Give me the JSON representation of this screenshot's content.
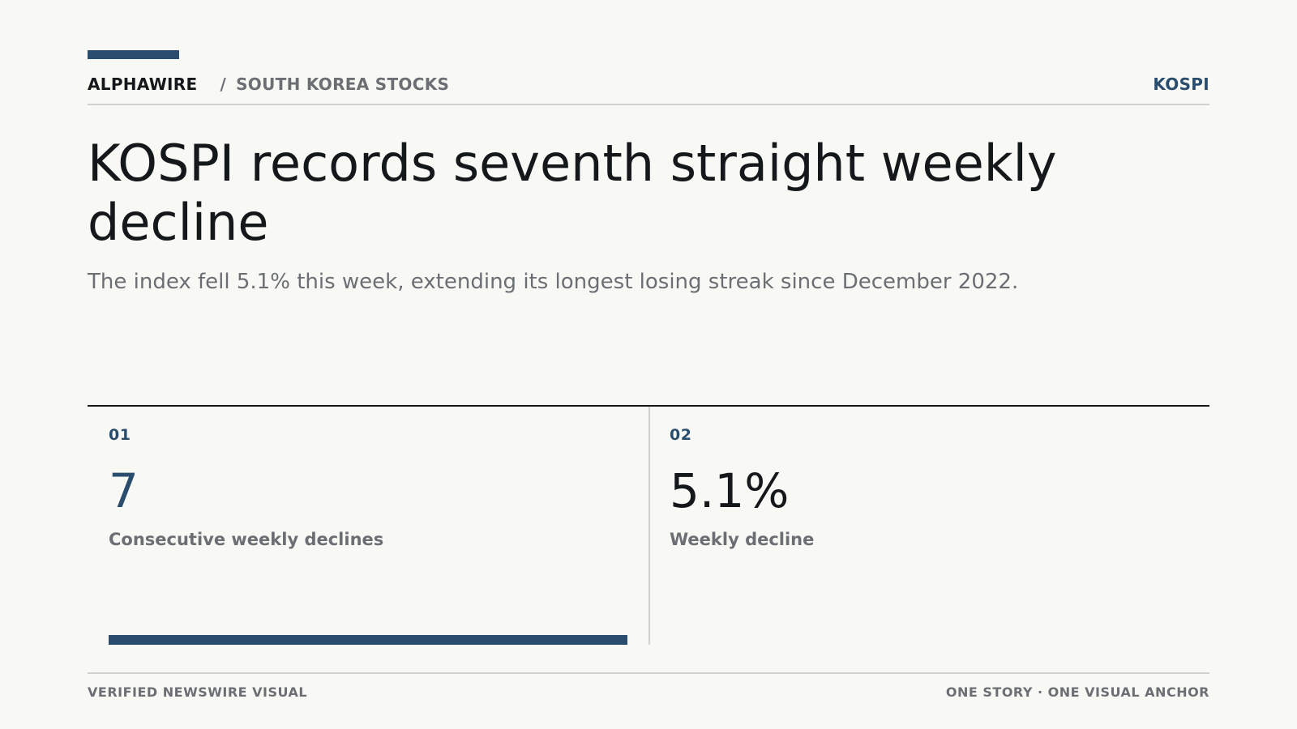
{
  "header": {
    "brand": "ALPHAWIRE",
    "separator": "/",
    "section": "SOUTH KOREA STOCKS",
    "ticker": "KOSPI"
  },
  "headline": "KOSPI records seventh straight weekly decline",
  "dek": "The index fell 5.1% this week, extending its longest losing streak since December 2022.",
  "stats": [
    {
      "index": "01",
      "value": "7",
      "label": "Consecutive weekly declines",
      "bar_fill_fraction": 1.0
    },
    {
      "index": "02",
      "value": "5.1%",
      "label": "Weekly decline"
    }
  ],
  "footer": {
    "left": "VERIFIED NEWSWIRE VISUAL",
    "right": "ONE STORY · ONE VISUAL ANCHOR"
  },
  "colors": {
    "accent": "#2a4d6e",
    "text": "#15181b",
    "muted": "#6b6f74",
    "background": "#f8f8f5"
  }
}
